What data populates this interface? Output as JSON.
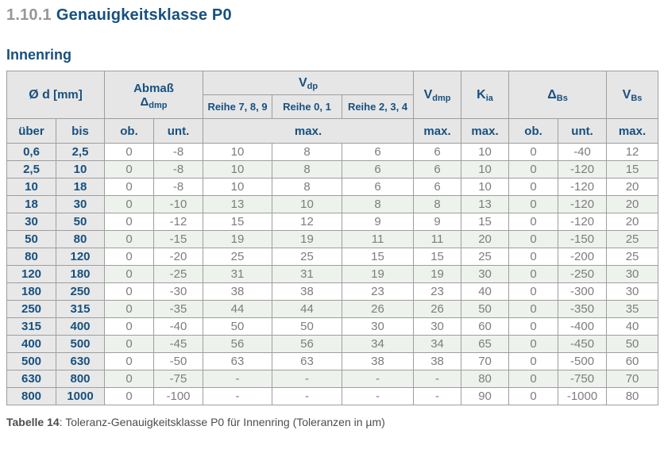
{
  "page": {
    "section_number": "1.10.1",
    "section_title": "Genauigkeitsklasse P0",
    "subtitle": "Innenring",
    "caption_label": "Tabelle 14",
    "caption_rest": ": Toleranz-Genauigkeitsklasse P0 für Innenring (Toleranzen in µm)"
  },
  "colors": {
    "accent_blue": "#17507f",
    "section_number_gray": "#979797",
    "data_text_gray": "#7d7d7d",
    "header_bg": "#e6e6e6",
    "diameter_col_bg": "#e8e8e8",
    "stripe_green": "#edf3ec",
    "border_gray": "#9e9e9e",
    "caption_gray": "#4d4d4d"
  },
  "table": {
    "header": {
      "d_base": "Ø d",
      "d_unit": "[mm]",
      "abmass_line1": "Abmaß",
      "abmass_base": "Δ",
      "abmass_sub": "dmp",
      "vdp_base": "V",
      "vdp_sub": "dp",
      "reihe": [
        "Reihe 7, 8, 9",
        "Reihe 0, 1",
        "Reihe 2, 3, 4"
      ],
      "vdmp_base": "V",
      "vdmp_sub": "dmp",
      "kia_base": "K",
      "kia_sub": "ia",
      "dbs_base": "Δ",
      "dbs_sub": "Bs",
      "vbs_base": "V",
      "vbs_sub": "Bs",
      "ueber": "über",
      "bis": "bis",
      "ob": "ob.",
      "unt": "unt.",
      "max": "max."
    },
    "rows": [
      [
        "0,6",
        "2,5",
        "0",
        "-8",
        "10",
        "8",
        "6",
        "6",
        "10",
        "0",
        "-40",
        "12"
      ],
      [
        "2,5",
        "10",
        "0",
        "-8",
        "10",
        "8",
        "6",
        "6",
        "10",
        "0",
        "-120",
        "15"
      ],
      [
        "10",
        "18",
        "0",
        "-8",
        "10",
        "8",
        "6",
        "6",
        "10",
        "0",
        "-120",
        "20"
      ],
      [
        "18",
        "30",
        "0",
        "-10",
        "13",
        "10",
        "8",
        "8",
        "13",
        "0",
        "-120",
        "20"
      ],
      [
        "30",
        "50",
        "0",
        "-12",
        "15",
        "12",
        "9",
        "9",
        "15",
        "0",
        "-120",
        "20"
      ],
      [
        "50",
        "80",
        "0",
        "-15",
        "19",
        "19",
        "11",
        "11",
        "20",
        "0",
        "-150",
        "25"
      ],
      [
        "80",
        "120",
        "0",
        "-20",
        "25",
        "25",
        "15",
        "15",
        "25",
        "0",
        "-200",
        "25"
      ],
      [
        "120",
        "180",
        "0",
        "-25",
        "31",
        "31",
        "19",
        "19",
        "30",
        "0",
        "-250",
        "30"
      ],
      [
        "180",
        "250",
        "0",
        "-30",
        "38",
        "38",
        "23",
        "23",
        "40",
        "0",
        "-300",
        "30"
      ],
      [
        "250",
        "315",
        "0",
        "-35",
        "44",
        "44",
        "26",
        "26",
        "50",
        "0",
        "-350",
        "35"
      ],
      [
        "315",
        "400",
        "0",
        "-40",
        "50",
        "50",
        "30",
        "30",
        "60",
        "0",
        "-400",
        "40"
      ],
      [
        "400",
        "500",
        "0",
        "-45",
        "56",
        "56",
        "34",
        "34",
        "65",
        "0",
        "-450",
        "50"
      ],
      [
        "500",
        "630",
        "0",
        "-50",
        "63",
        "63",
        "38",
        "38",
        "70",
        "0",
        "-500",
        "60"
      ],
      [
        "630",
        "800",
        "0",
        "-75",
        "-",
        "-",
        "-",
        "-",
        "80",
        "0",
        "-750",
        "70"
      ],
      [
        "800",
        "1000",
        "0",
        "-100",
        "-",
        "-",
        "-",
        "-",
        "90",
        "0",
        "-1000",
        "80"
      ]
    ]
  }
}
